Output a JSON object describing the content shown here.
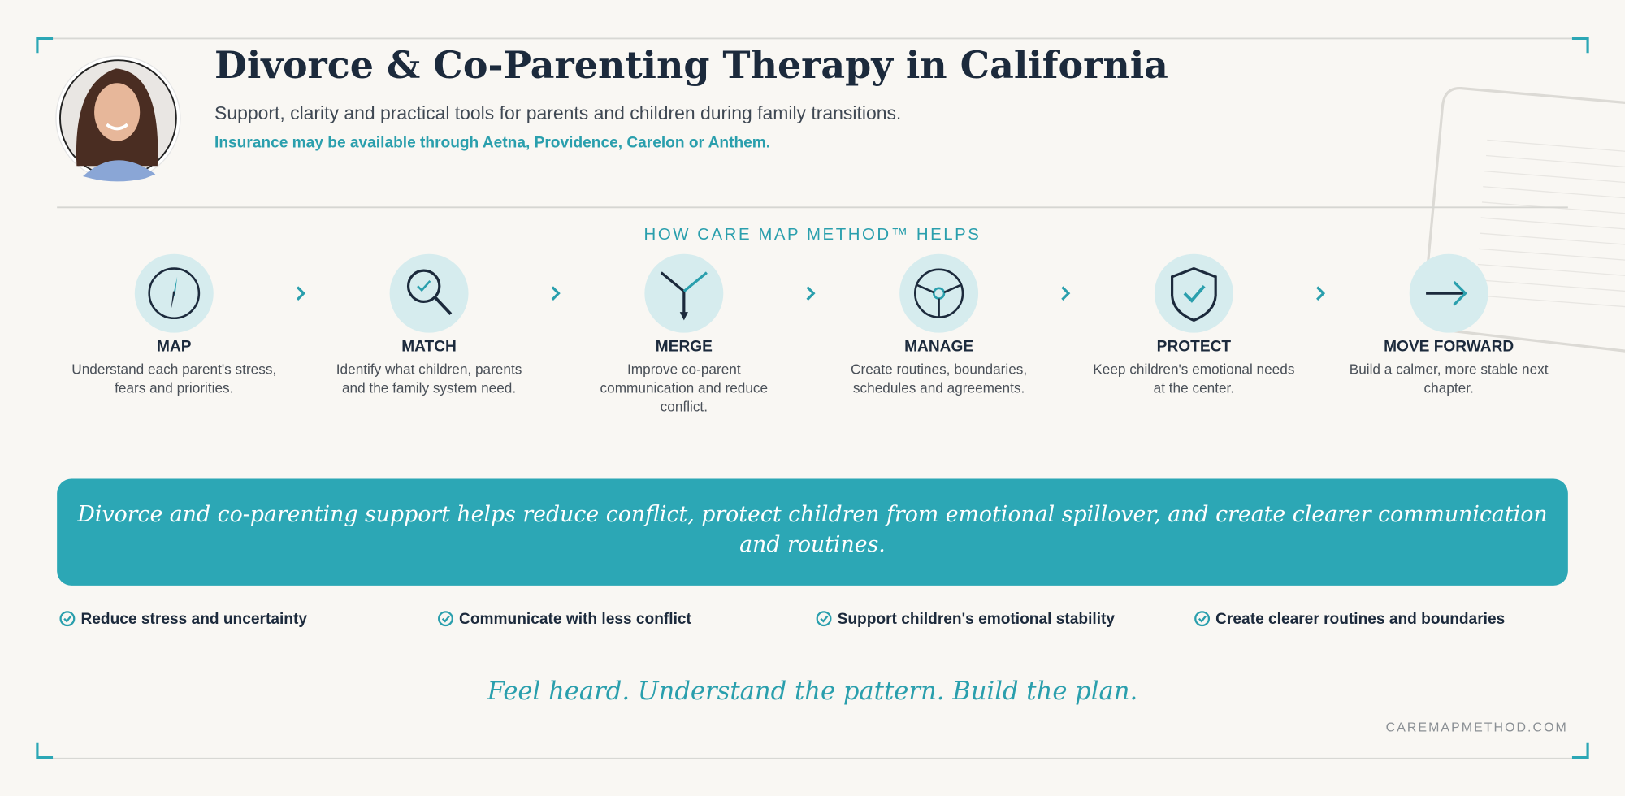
{
  "header": {
    "title": "Divorce & Co-Parenting Therapy in California",
    "subtitle": "Support, clarity and practical tools for parents and children during family transitions.",
    "insurance": "Insurance may be available through Aetna, Providence, Carelon or Anthem."
  },
  "method": {
    "heading": "HOW CARE MAP METHOD™ HELPS",
    "steps": [
      {
        "title": "MAP",
        "description": [
          "Understand each parent's stress,",
          "fears and priorities."
        ]
      },
      {
        "title": "MATCH",
        "description": [
          "Identify what children, parents",
          "and the family system need."
        ]
      },
      {
        "title": "MERGE",
        "description": [
          "Improve co-parent",
          "communication and reduce",
          "conflict."
        ]
      },
      {
        "title": "MANAGE",
        "description": [
          "Create routines, boundaries,",
          "schedules and agreements."
        ]
      },
      {
        "title": "PROTECT",
        "description": [
          "Keep children's emotional needs",
          "at the center."
        ]
      },
      {
        "title": "MOVE FORWARD",
        "description": [
          "Build a calmer, more stable next",
          "chapter."
        ]
      }
    ]
  },
  "banner": {
    "text": [
      "Divorce and co-parenting support helps reduce conflict, protect children from emotional spillover, and create clearer communication",
      "and routines."
    ]
  },
  "benefits": [
    "Reduce stress and uncertainty",
    "Communicate with less conflict",
    "Support children's emotional stability",
    "Create clearer routines and boundaries"
  ],
  "tagline": "Feel heard. Understand the pattern. Build the plan.",
  "website": "CAREMAPMETHOD.COM"
}
